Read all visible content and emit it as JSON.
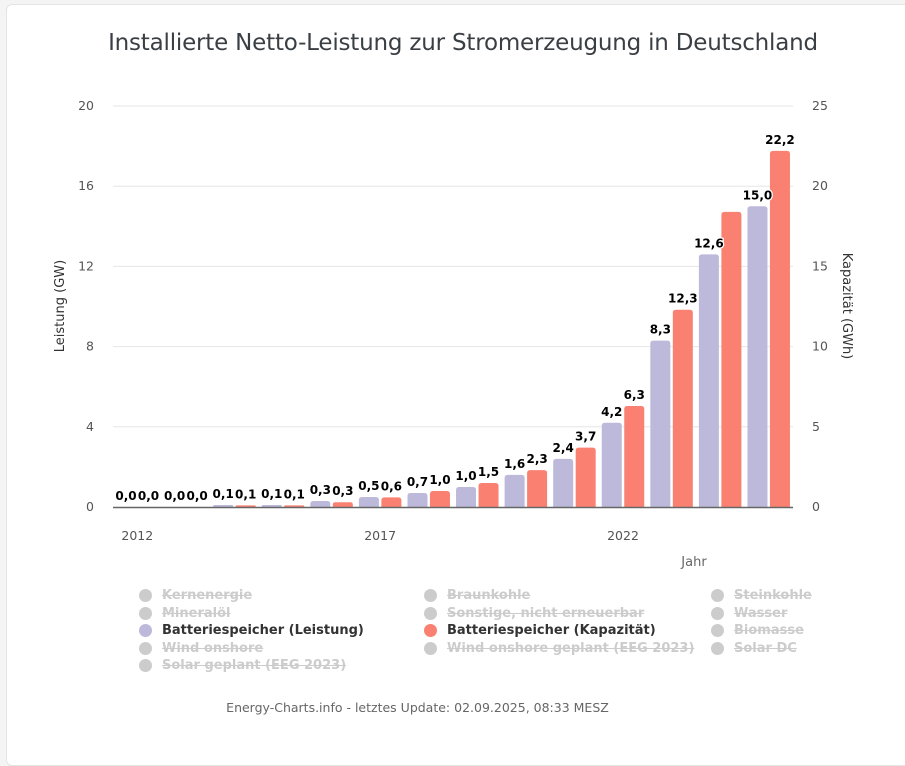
{
  "page": {
    "title": "Installierte Netto-Leistung zur Stromerzeugung in Deutschland",
    "footer": "Energy-Charts.info - letztes Update: 02.09.2025, 08:33 MESZ"
  },
  "legend": {
    "items": [
      {
        "label": "Kernenergie",
        "visible": false,
        "color": "#cccccc"
      },
      {
        "label": "Braunkohle",
        "visible": false,
        "color": "#cccccc"
      },
      {
        "label": "Steinkohle",
        "visible": false,
        "color": "#cccccc"
      },
      {
        "label": "Mineralöl",
        "visible": false,
        "color": "#cccccc"
      },
      {
        "label": "Sonstige, nicht erneuerbar",
        "visible": false,
        "color": "#cccccc"
      },
      {
        "label": "Wasser",
        "visible": false,
        "color": "#cccccc"
      },
      {
        "label": "Batteriespeicher (Leistung)",
        "visible": true,
        "color": "#bdb9da"
      },
      {
        "label": "Batteriespeicher (Kapazität)",
        "visible": true,
        "color": "#fa8072"
      },
      {
        "label": "Biomasse",
        "visible": false,
        "color": "#cccccc"
      },
      {
        "label": "Wind onshore",
        "visible": false,
        "color": "#cccccc"
      },
      {
        "label": "Wind onshore geplant (EEG 2023)",
        "visible": false,
        "color": "#cccccc"
      },
      {
        "label": "Solar DC",
        "visible": false,
        "color": "#cccccc"
      },
      {
        "label": "Solar geplant (EEG 2023)",
        "visible": false,
        "color": "#cccccc"
      }
    ]
  },
  "chart_data": {
    "type": "bar",
    "title": "Installierte Netto-Leistung zur Stromerzeugung in Deutschland",
    "xlabel": "Jahr",
    "ylabel": "Leistung (GW)",
    "y2label": "Kapazität (GWh)",
    "categories": [
      "2012",
      "2013",
      "2014",
      "2015",
      "2016",
      "2017",
      "2018",
      "2019",
      "2020",
      "2021",
      "2022",
      "2023",
      "2024",
      "2025"
    ],
    "x_tick_labels": [
      "2012",
      "2017",
      "2022"
    ],
    "ylim": [
      0,
      20
    ],
    "y_ticks": [
      "0",
      "4",
      "8",
      "12",
      "16",
      "20"
    ],
    "y2lim": [
      0,
      25
    ],
    "y2_ticks": [
      "0",
      "5",
      "10",
      "15",
      "20",
      "25"
    ],
    "grid": true,
    "legend_position": "bottom",
    "series": [
      {
        "name": "Batteriespeicher (Leistung)",
        "axis": "left",
        "color": "#bdb9da",
        "values": [
          0.0,
          0.0,
          0.1,
          0.1,
          0.3,
          0.5,
          0.7,
          1.0,
          1.6,
          2.4,
          4.2,
          8.3,
          12.6,
          15.0
        ],
        "labels": [
          "0,0",
          "0,0",
          "0,1",
          "0,1",
          "0,3",
          "0,5",
          "0,7",
          "1,0",
          "1,6",
          "2,4",
          "4,2",
          "8,3",
          "12,6",
          "15,0"
        ]
      },
      {
        "name": "Batteriespeicher (Kapazität)",
        "axis": "right",
        "color": "#fa8072",
        "values": [
          0.0,
          0.0,
          0.1,
          0.1,
          0.3,
          0.6,
          1.0,
          1.5,
          2.3,
          3.7,
          6.3,
          12.3,
          18.4,
          22.2
        ],
        "labels": [
          "0,0",
          "0,0",
          "0,1",
          "0,1",
          "0,3",
          "0,6",
          "1,0",
          "1,5",
          "2,3",
          "3,7",
          "6,3",
          "12,3",
          "",
          "22,2"
        ]
      }
    ]
  }
}
